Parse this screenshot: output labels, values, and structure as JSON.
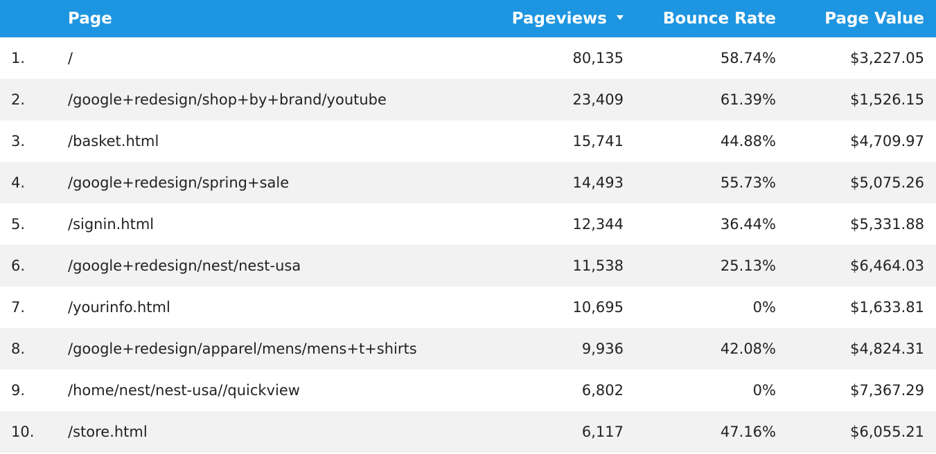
{
  "table": {
    "columns": {
      "page": "Page",
      "pageviews": "Pageviews",
      "bounce_rate": "Bounce Rate",
      "page_value": "Page Value"
    },
    "sort": {
      "column": "pageviews",
      "direction": "descending",
      "icon": "sort-descending-icon"
    },
    "header_color": "#1e95e0",
    "rows": [
      {
        "index": "1.",
        "page": "/",
        "pageviews": "80,135",
        "bounce_rate": "58.74%",
        "page_value": "$3,227.05"
      },
      {
        "index": "2.",
        "page": "/google+redesign/shop+by+brand/youtube",
        "pageviews": "23,409",
        "bounce_rate": "61.39%",
        "page_value": "$1,526.15"
      },
      {
        "index": "3.",
        "page": "/basket.html",
        "pageviews": "15,741",
        "bounce_rate": "44.88%",
        "page_value": "$4,709.97"
      },
      {
        "index": "4.",
        "page": "/google+redesign/spring+sale",
        "pageviews": "14,493",
        "bounce_rate": "55.73%",
        "page_value": "$5,075.26"
      },
      {
        "index": "5.",
        "page": "/signin.html",
        "pageviews": "12,344",
        "bounce_rate": "36.44%",
        "page_value": "$5,331.88"
      },
      {
        "index": "6.",
        "page": "/google+redesign/nest/nest-usa",
        "pageviews": "11,538",
        "bounce_rate": "25.13%",
        "page_value": "$6,464.03"
      },
      {
        "index": "7.",
        "page": "/yourinfo.html",
        "pageviews": "10,695",
        "bounce_rate": "0%",
        "page_value": "$1,633.81"
      },
      {
        "index": "8.",
        "page": "/google+redesign/apparel/mens/mens+t+shirts",
        "pageviews": "9,936",
        "bounce_rate": "42.08%",
        "page_value": "$4,824.31"
      },
      {
        "index": "9.",
        "page": "/home/nest/nest-usa//quickview",
        "pageviews": "6,802",
        "bounce_rate": "0%",
        "page_value": "$7,367.29"
      },
      {
        "index": "10.",
        "page": "/store.html",
        "pageviews": "6,117",
        "bounce_rate": "47.16%",
        "page_value": "$6,055.21"
      }
    ]
  }
}
